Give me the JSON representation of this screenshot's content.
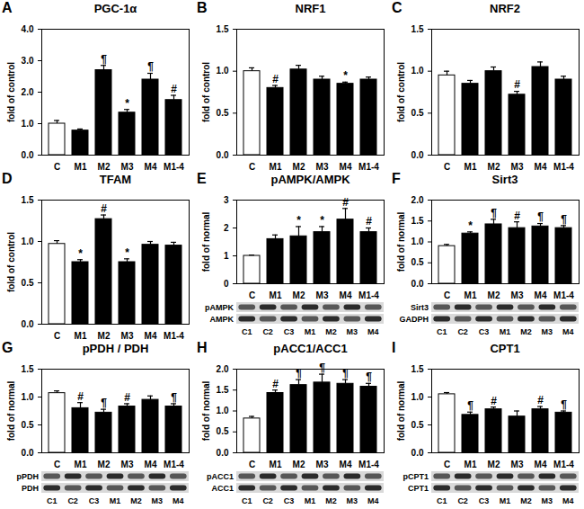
{
  "chart_data": [
    {
      "type": "bar",
      "panel": "A",
      "title": "PGC-1α",
      "y_label": "fold of control",
      "categories": [
        "C",
        "M1",
        "M2",
        "M3",
        "M4",
        "M1-4"
      ],
      "values": [
        1.0,
        0.78,
        2.7,
        1.35,
        2.4,
        1.75
      ],
      "errors": [
        0.1,
        0.05,
        0.15,
        0.1,
        0.2,
        0.15
      ],
      "annotations": [
        null,
        null,
        "¶",
        "*",
        "¶",
        "#"
      ],
      "colors": [
        "#ffffff",
        "#000000",
        "#000000",
        "#000000",
        "#000000",
        "#000000"
      ],
      "ylim": [
        0,
        4
      ],
      "yticks": [
        {
          "value": 0,
          "label": "0.0"
        },
        {
          "value": 1,
          "label": "1.0"
        },
        {
          "value": 2,
          "label": "2.0"
        },
        {
          "value": 3,
          "label": "3.0"
        },
        {
          "value": 4,
          "label": "4.0"
        }
      ]
    },
    {
      "type": "bar",
      "panel": "B",
      "title": "NRF1",
      "y_label": "fold of control",
      "categories": [
        "C",
        "M1",
        "M2",
        "M3",
        "M4",
        "M1-4"
      ],
      "values": [
        1.0,
        0.8,
        1.02,
        0.9,
        0.85,
        0.9
      ],
      "errors": [
        0.04,
        0.03,
        0.05,
        0.04,
        0.02,
        0.03
      ],
      "annotations": [
        null,
        "#",
        null,
        null,
        "*",
        null
      ],
      "colors": [
        "#ffffff",
        "#000000",
        "#000000",
        "#000000",
        "#000000",
        "#000000"
      ],
      "ylim": [
        0,
        1.5
      ],
      "yticks": [
        {
          "value": 0,
          "label": "0.0"
        },
        0.5,
        {
          "value": 1,
          "label": "1.0"
        },
        1.5
      ]
    },
    {
      "type": "bar",
      "panel": "C",
      "title": "NRF2",
      "y_label": "fold of control",
      "categories": [
        "C",
        "M1",
        "M2",
        "M3",
        "M4",
        "M1-4"
      ],
      "values": [
        0.95,
        0.85,
        1.0,
        0.72,
        1.05,
        0.9
      ],
      "errors": [
        0.05,
        0.04,
        0.05,
        0.04,
        0.06,
        0.04
      ],
      "annotations": [
        null,
        null,
        null,
        "#",
        null,
        null
      ],
      "colors": [
        "#ffffff",
        "#000000",
        "#000000",
        "#000000",
        "#000000",
        "#000000"
      ],
      "ylim": [
        0,
        1.5
      ],
      "yticks": [
        {
          "value": 0,
          "label": "0.0"
        },
        0.5,
        {
          "value": 1,
          "label": "1.0"
        },
        1.5
      ]
    },
    {
      "type": "bar",
      "panel": "D",
      "title": "TFAM",
      "y_label": "fold of control",
      "categories": [
        "C",
        "M1",
        "M2",
        "M3",
        "M4",
        "M1-4"
      ],
      "values": [
        0.97,
        0.75,
        1.27,
        0.75,
        0.96,
        0.95
      ],
      "errors": [
        0.04,
        0.03,
        0.05,
        0.04,
        0.04,
        0.04
      ],
      "annotations": [
        null,
        "*",
        "#",
        "*",
        null,
        null
      ],
      "colors": [
        "#ffffff",
        "#000000",
        "#000000",
        "#000000",
        "#000000",
        "#000000"
      ],
      "ylim": [
        0,
        1.5
      ],
      "yticks": [
        {
          "value": 0,
          "label": "0.0"
        },
        0.5,
        {
          "value": 1,
          "label": "1.0"
        },
        1.5
      ]
    },
    {
      "type": "bar",
      "panel": "E",
      "title": "pAMPK/AMPK",
      "y_label": "fold of normal",
      "categories": [
        "C",
        "M1",
        "M2",
        "M3",
        "M4",
        "M1-4"
      ],
      "values": [
        1.0,
        1.6,
        1.7,
        1.85,
        2.3,
        1.85
      ],
      "errors": [
        0.03,
        0.15,
        0.35,
        0.2,
        0.4,
        0.15
      ],
      "annotations": [
        null,
        null,
        "*",
        "*",
        "#",
        "#"
      ],
      "colors": [
        "#ffffff",
        "#000000",
        "#000000",
        "#000000",
        "#000000",
        "#000000"
      ],
      "ylim": [
        0,
        3
      ],
      "yticks": [
        0,
        1,
        2,
        3
      ],
      "blot": {
        "rows": [
          "pAMPK",
          "AMPK"
        ],
        "lanes": [
          "C1",
          "C2",
          "C3",
          "M1",
          "M2",
          "M3",
          "M4"
        ]
      }
    },
    {
      "type": "bar",
      "panel": "F",
      "title": "Sirt3",
      "y_label": "fold of normal",
      "categories": [
        "C",
        "M1",
        "M2",
        "M3",
        "M4",
        "M1-4"
      ],
      "values": [
        0.9,
        1.2,
        1.42,
        1.33,
        1.37,
        1.33
      ],
      "errors": [
        0.04,
        0.04,
        0.12,
        0.15,
        0.07,
        0.06
      ],
      "annotations": [
        null,
        "*",
        "¶",
        "#",
        "¶",
        "¶"
      ],
      "colors": [
        "#ffffff",
        "#000000",
        "#000000",
        "#000000",
        "#000000",
        "#000000"
      ],
      "ylim": [
        0,
        2
      ],
      "yticks": [
        {
          "value": 0,
          "label": "0.0"
        },
        0.5,
        {
          "value": 1,
          "label": "1.0"
        },
        1.5,
        {
          "value": 2,
          "label": "2.0"
        }
      ],
      "blot": {
        "rows": [
          "Sirt3",
          "GADPH"
        ],
        "lanes": [
          "C1",
          "C2",
          "C3",
          "M1",
          "M2",
          "M3",
          "M4"
        ]
      }
    },
    {
      "type": "bar",
      "panel": "G",
      "title": "pPDH / PDH",
      "y_label": "fold of normal",
      "categories": [
        "C",
        "M1",
        "M2",
        "M3",
        "M4",
        "M1-4"
      ],
      "values": [
        1.07,
        0.8,
        0.72,
        0.83,
        0.95,
        0.83
      ],
      "errors": [
        0.04,
        0.1,
        0.06,
        0.05,
        0.07,
        0.05
      ],
      "annotations": [
        null,
        "#",
        "¶",
        "#",
        null,
        "¶"
      ],
      "colors": [
        "#ffffff",
        "#000000",
        "#000000",
        "#000000",
        "#000000",
        "#000000"
      ],
      "ylim": [
        0,
        1.5
      ],
      "yticks": [
        {
          "value": 0,
          "label": "0.0"
        },
        0.5,
        {
          "value": 1,
          "label": "1.0"
        },
        1.5
      ],
      "blot": {
        "rows": [
          "pPDH",
          "PDH"
        ],
        "lanes": [
          "C1",
          "C2",
          "C3",
          "M1",
          "M2",
          "M3",
          "M4"
        ]
      }
    },
    {
      "type": "bar",
      "panel": "H",
      "title": "pACC1/ACC1",
      "y_label": "fold of normal",
      "categories": [
        "C",
        "M1",
        "M2",
        "M3",
        "M4",
        "M1-4"
      ],
      "values": [
        0.82,
        1.43,
        1.62,
        1.68,
        1.65,
        1.58
      ],
      "errors": [
        0.05,
        0.07,
        0.13,
        0.2,
        0.1,
        0.08
      ],
      "annotations": [
        null,
        "#",
        "¶",
        "¶",
        "¶",
        "¶"
      ],
      "colors": [
        "#ffffff",
        "#000000",
        "#000000",
        "#000000",
        "#000000",
        "#000000"
      ],
      "ylim": [
        0,
        2
      ],
      "yticks": [
        {
          "value": 0,
          "label": "0.0"
        },
        0.5,
        {
          "value": 1,
          "label": "1.0"
        },
        1.5,
        {
          "value": 2,
          "label": "2.0"
        }
      ],
      "blot": {
        "rows": [
          "pACC1",
          "ACC1"
        ],
        "lanes": [
          "C1",
          "C2",
          "C3",
          "M1",
          "M2",
          "M3",
          "M4"
        ]
      }
    },
    {
      "type": "bar",
      "panel": "I",
      "title": "CPT1",
      "y_label": "fold of normal",
      "categories": [
        "C",
        "M1",
        "M2",
        "M3",
        "M4",
        "M1-4"
      ],
      "values": [
        1.05,
        0.68,
        0.78,
        0.65,
        0.78,
        0.72
      ],
      "errors": [
        0.03,
        0.05,
        0.04,
        0.1,
        0.05,
        0.03
      ],
      "annotations": [
        null,
        "¶",
        "#",
        null,
        "#",
        "¶"
      ],
      "colors": [
        "#ffffff",
        "#000000",
        "#000000",
        "#000000",
        "#000000",
        "#000000"
      ],
      "ylim": [
        0,
        1.5
      ],
      "yticks": [
        {
          "value": 0,
          "label": "0.0"
        },
        0.5,
        {
          "value": 1,
          "label": "1.0"
        },
        1.5
      ],
      "blot": {
        "rows": [
          "pCPT1",
          "CPT1"
        ],
        "lanes": [
          "C1",
          "C2",
          "C3",
          "M1",
          "M2",
          "M3",
          "M4"
        ]
      }
    }
  ]
}
